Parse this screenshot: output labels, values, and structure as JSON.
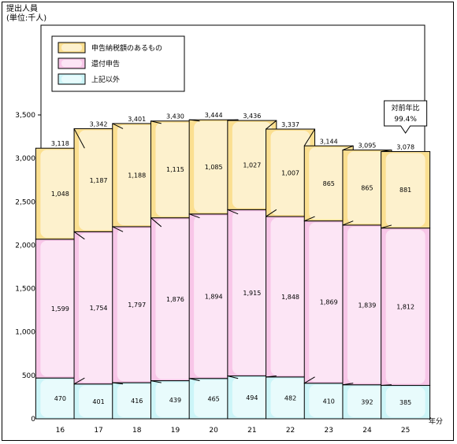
{
  "chart_data": {
    "type": "bar",
    "stacked": true,
    "unit_label_line1": "提出人員",
    "unit_label_line2": "(単位:千人)",
    "xlabel": "年分",
    "categories": [
      "16",
      "17",
      "18",
      "19",
      "20",
      "21",
      "22",
      "23",
      "24",
      "25"
    ],
    "series": [
      {
        "name": "上記以外",
        "color": "#ccf5f8",
        "values": [
          470,
          401,
          416,
          439,
          465,
          494,
          482,
          410,
          392,
          385
        ]
      },
      {
        "name": "還付申告",
        "color": "#f8c6e8",
        "values": [
          1599,
          1754,
          1797,
          1876,
          1894,
          1915,
          1848,
          1869,
          1839,
          1812
        ]
      },
      {
        "name": "申告納税額のあるもの",
        "color": "#fbdf90",
        "values": [
          1048,
          1187,
          1188,
          1115,
          1085,
          1027,
          1007,
          865,
          865,
          881
        ]
      }
    ],
    "totals": [
      "3,118",
      "3,342",
      "3,401",
      "3,430",
      "3,444",
      "3,436",
      "3,337",
      "3,144",
      "3,095",
      "3,078"
    ],
    "ylim": [
      0,
      3500
    ],
    "yticks": [
      0,
      500,
      1000,
      1500,
      2000,
      2500,
      3000,
      3500
    ],
    "ytick_labels": [
      "0",
      "500",
      "1,000",
      "1,500",
      "2,000",
      "2,500",
      "3,000",
      "3,500"
    ],
    "legend": [
      "申告納税額のあるもの",
      "還付申告",
      "上記以外"
    ],
    "legend_position": "top-left",
    "annotation": {
      "line1": "対前年比",
      "line2": "99.4%",
      "category": "25"
    }
  }
}
